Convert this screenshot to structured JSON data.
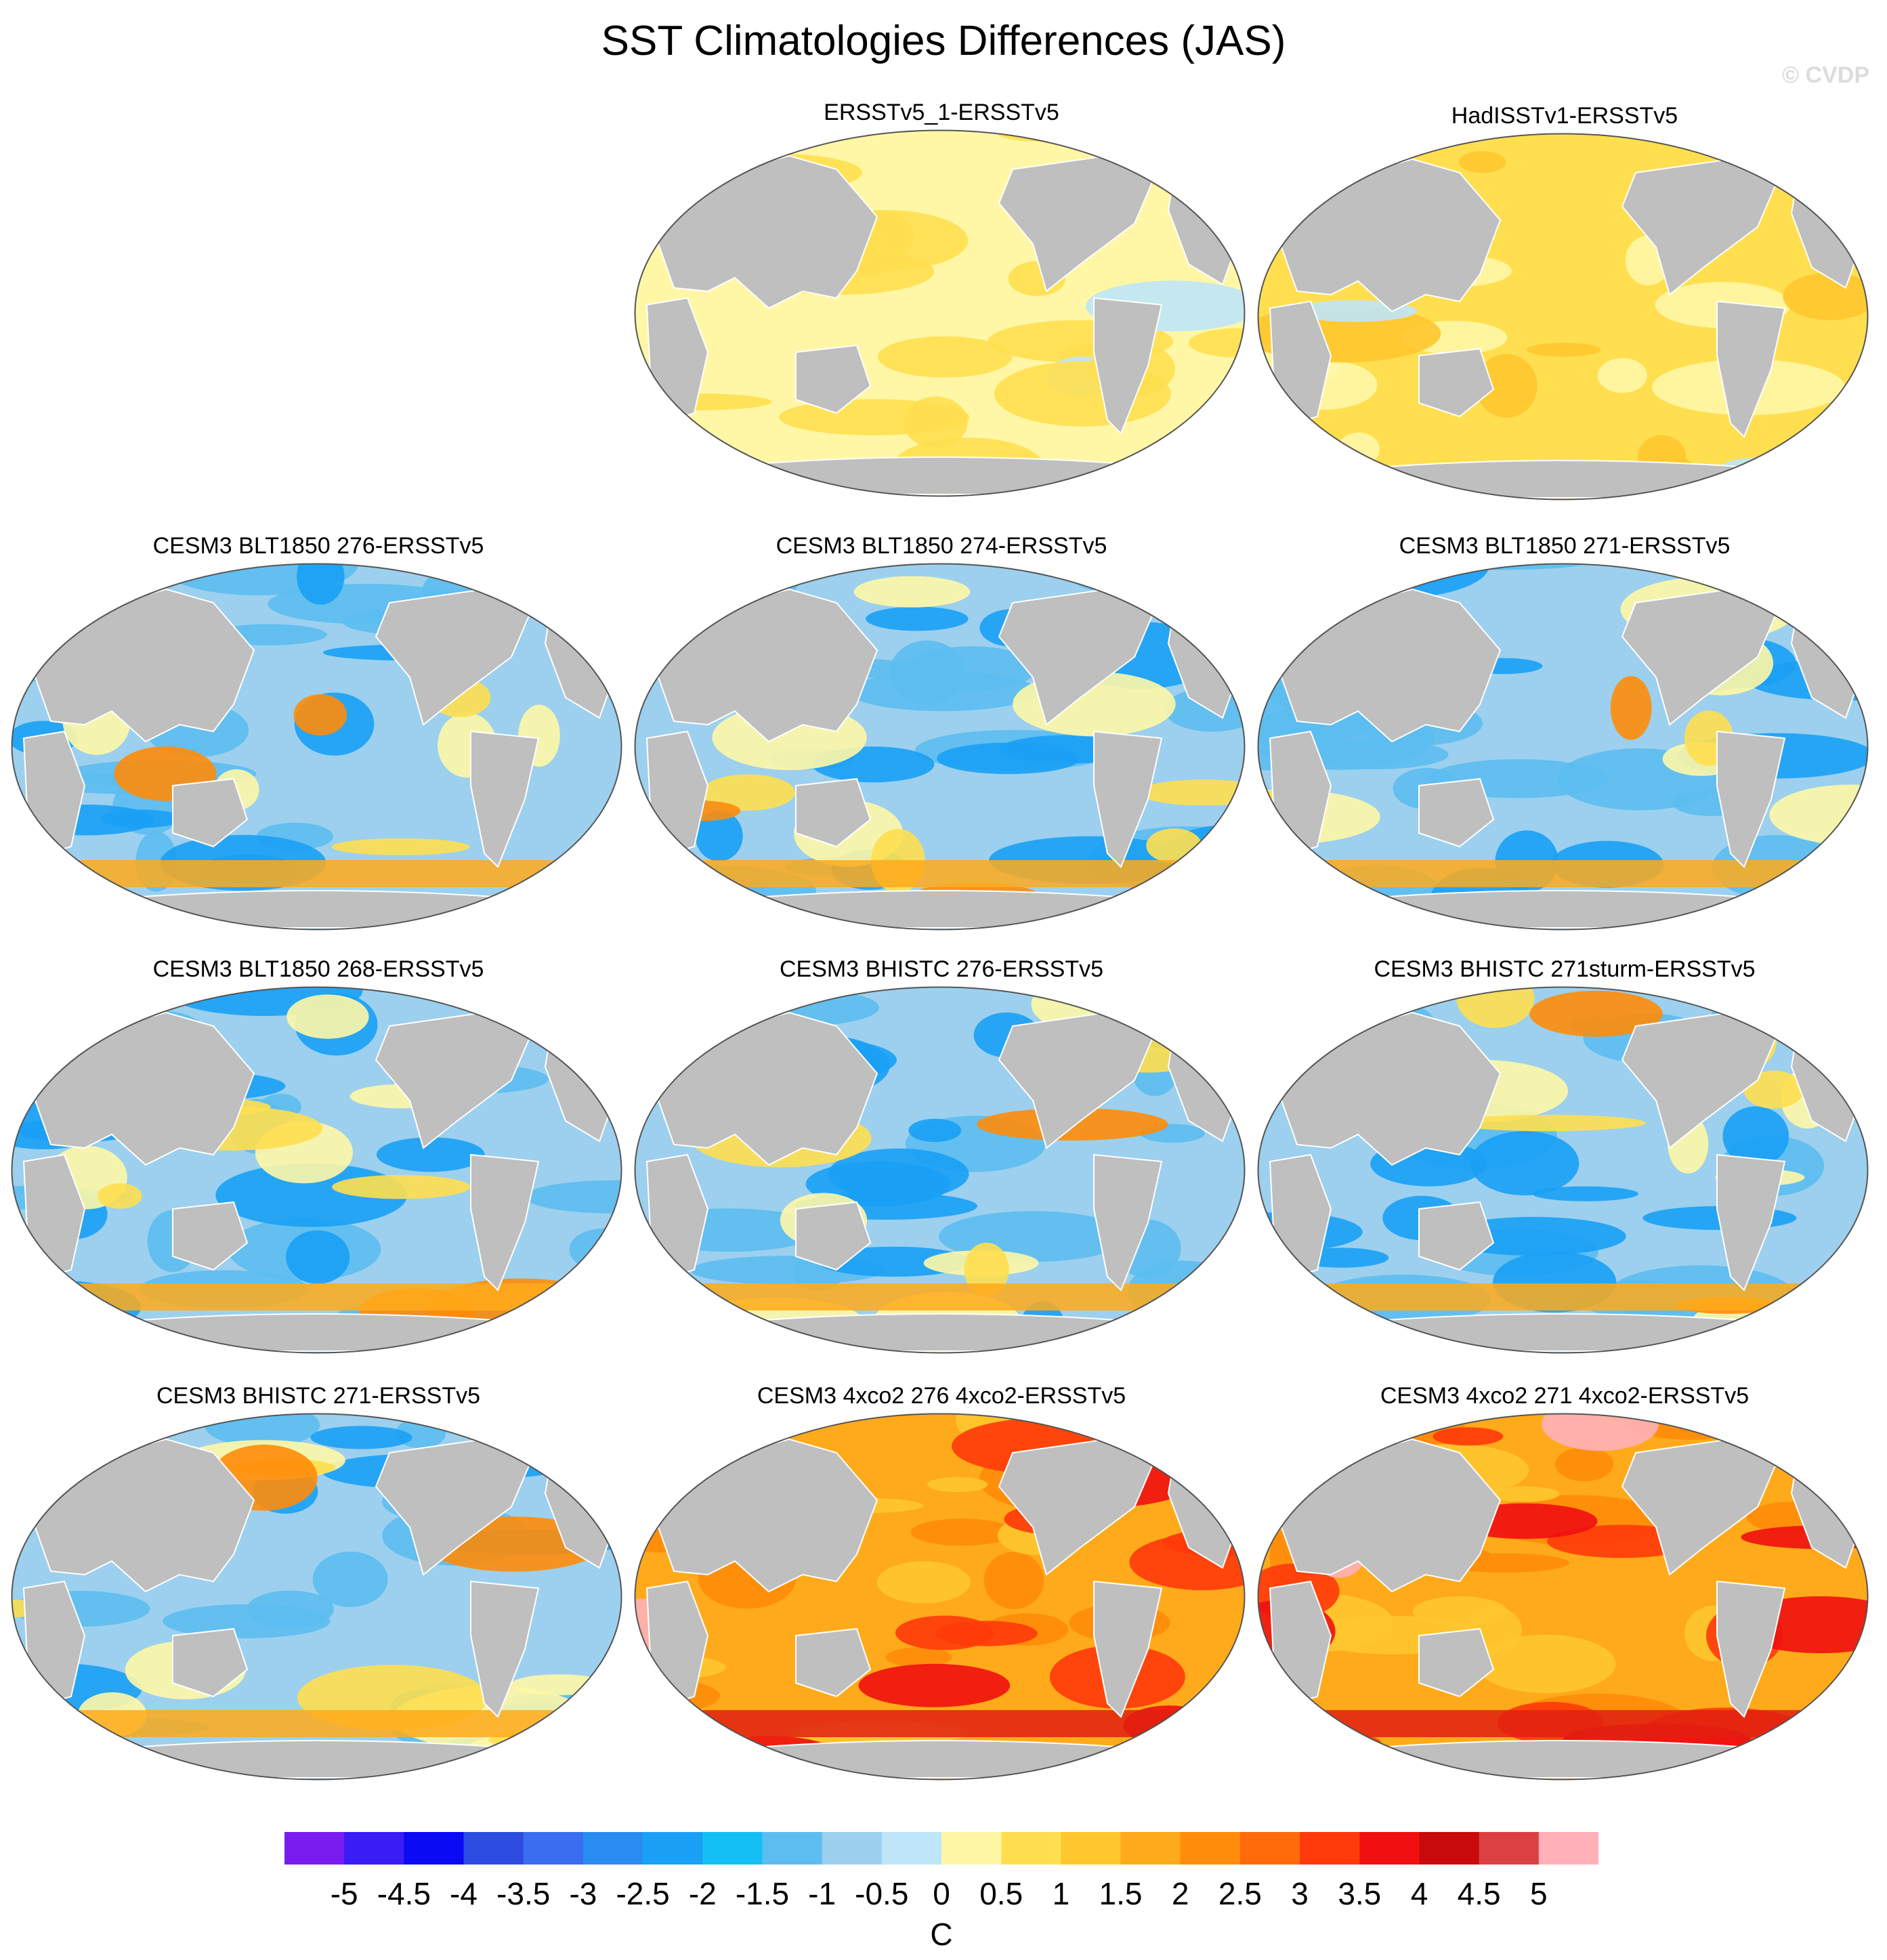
{
  "title": "SST Climatologies Differences (JAS)",
  "watermark": "© CVDP",
  "colors": {
    "land": "#bfbfbf",
    "ocean_border": "#555555"
  },
  "panels": [
    {
      "title": "ERSSTv5_1-ERSSTv5",
      "pattern": "near-zero"
    },
    {
      "title": "HadISSTv1-ERSSTv5",
      "pattern": "slight-warm"
    },
    {
      "title": "CESM3 BLT1850 276-ERSSTv5",
      "pattern": "cold-bias"
    },
    {
      "title": "CESM3 BLT1850 274-ERSSTv5",
      "pattern": "cold-bias"
    },
    {
      "title": "CESM3 BLT1850 271-ERSSTv5",
      "pattern": "cold-bias"
    },
    {
      "title": "CESM3 BLT1850 268-ERSSTv5",
      "pattern": "cold-bias"
    },
    {
      "title": "CESM3 BHISTC 276-ERSSTv5",
      "pattern": "cold-bias"
    },
    {
      "title": "CESM3 BHISTC 271sturm-ERSSTv5",
      "pattern": "cold-bias"
    },
    {
      "title": "CESM3 BHISTC 271-ERSSTv5",
      "pattern": "cold-bias"
    },
    {
      "title": "CESM3 4xco2 276 4xco2-ERSSTv5",
      "pattern": "warm"
    },
    {
      "title": "CESM3 4xco2 271 4xco2-ERSSTv5",
      "pattern": "warm"
    }
  ],
  "chart_data": {
    "type": "heatmap",
    "title": "SST Climatologies Differences (JAS)",
    "variable": "SST difference",
    "units": "C",
    "season": "JAS",
    "projection": "Robinson (Pacific-centred)",
    "colorbar": {
      "levels": [
        -5,
        -4.5,
        -4,
        -3.5,
        -3,
        -2.5,
        -2,
        -1.5,
        -1,
        -0.5,
        0,
        0.5,
        1,
        1.5,
        2,
        2.5,
        3,
        3.5,
        4,
        4.5,
        5
      ],
      "level_labels": [
        "-5",
        "-4.5",
        "-4",
        "-3.5",
        "-3",
        "-2.5",
        "-2",
        "-1.5",
        "-1",
        "-0.5",
        "0",
        "0.5",
        "1",
        "1.5",
        "2",
        "2.5",
        "3",
        "3.5",
        "4",
        "4.5",
        "5"
      ],
      "colors": [
        "#7a1cf0",
        "#3a1cf5",
        "#0a0af5",
        "#2d4de0",
        "#3a6df0",
        "#2a8cf0",
        "#1aa0f5",
        "#14bff5",
        "#5cbdf0",
        "#9cd0ee",
        "#bfe6f8",
        "#fff7a6",
        "#ffdf4f",
        "#ffc72e",
        "#ffaa1a",
        "#ff8c0a",
        "#ff6a0a",
        "#ff3a0a",
        "#f01010",
        "#c80a0a",
        "#dd4040",
        "#ffb0b8"
      ]
    },
    "panels": [
      "ERSSTv5_1-ERSSTv5",
      "HadISSTv1-ERSSTv5",
      "CESM3 BLT1850 276-ERSSTv5",
      "CESM3 BLT1850 274-ERSSTv5",
      "CESM3 BLT1850 271-ERSSTv5",
      "CESM3 BLT1850 268-ERSSTv5",
      "CESM3 BHISTC 276-ERSSTv5",
      "CESM3 BHISTC 271sturm-ERSSTv5",
      "CESM3 BHISTC 271-ERSSTv5",
      "CESM3 4xco2 276 4xco2-ERSSTv5",
      "CESM3 4xco2 271 4xco2-ERSSTv5"
    ]
  }
}
